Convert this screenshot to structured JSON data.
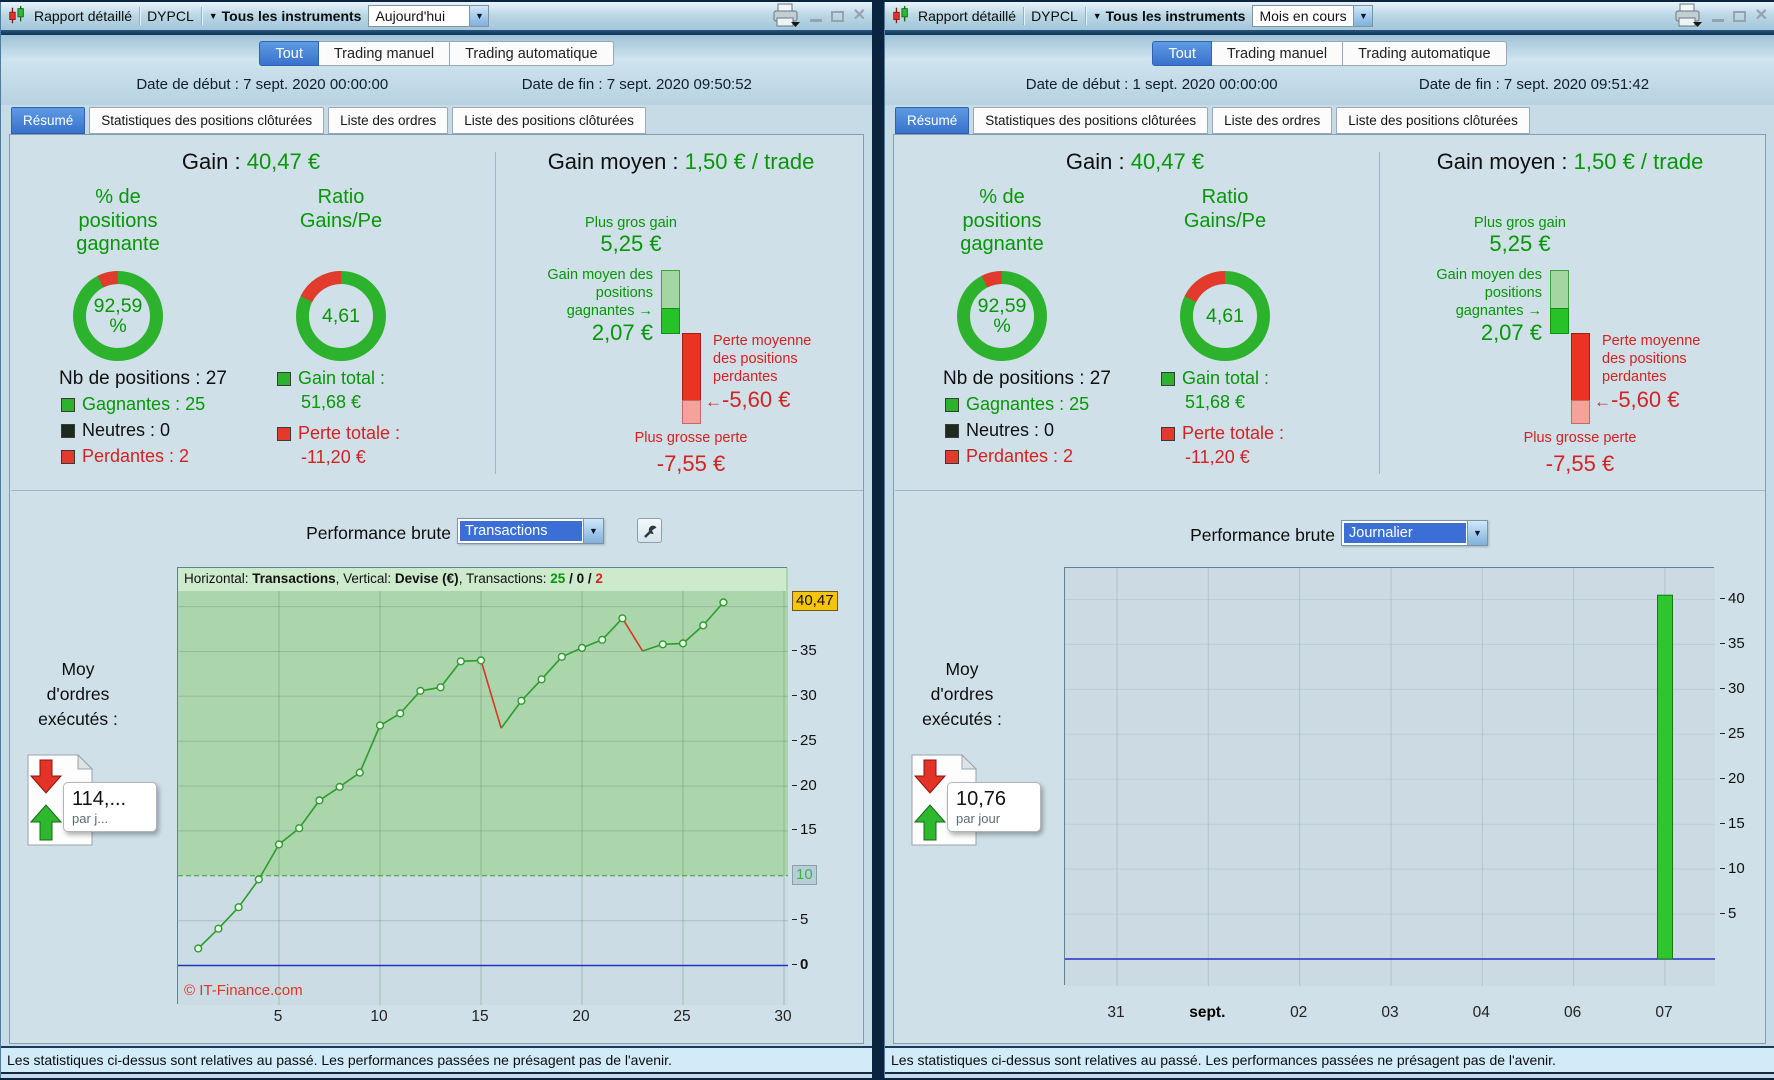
{
  "colors": {
    "gain_green": "#079607",
    "loss_red": "#d42222",
    "accent_blue": "#3d7ed8",
    "badge_yellow": "#f6c50b"
  },
  "windows": [
    {
      "titlebar": {
        "title": "Rapport détaillé",
        "instrument": "DYPCL",
        "scope_arrow": "▼",
        "scope": "Tous les instruments",
        "period": "Aujourd'hui",
        "combo_arrow": "▼"
      },
      "tabs": [
        "Tout",
        "Trading manuel",
        "Trading automatique"
      ],
      "dates": {
        "start": "Date de début : 7 sept. 2020 00:00:00",
        "end": "Date de fin : 7 sept. 2020 09:50:52"
      },
      "subtabs": [
        "Résumé",
        "Statistiques des positions clôturées",
        "Liste des ordres",
        "Liste des positions clôturées"
      ],
      "summary": {
        "gain_label": "Gain :",
        "gain_value": "40,47 €",
        "pct_title": "% de positions gagnante",
        "pct_value_line1": "92,59",
        "pct_value_line2": "%",
        "ratio_title": "Ratio Gains/Pe",
        "ratio_value": "4,61",
        "nb_positions": "Nb de positions : 27",
        "winners": "Gagnantes : 25",
        "neutrals": "Neutres : 0",
        "losers": "Perdantes : 2",
        "gain_total_label": "Gain total :",
        "gain_total_value": "51,68 €",
        "loss_total_label": "Perte totale :",
        "loss_total_value": "-11,20 €"
      },
      "avg": {
        "title_label": "Gain moyen :",
        "title_value": "1,50 € / trade",
        "max_gain_label": "Plus gros gain",
        "max_gain_value": "5,25 €",
        "avg_gain_label": "Gain moyen des positions gagnantes",
        "gain_pointer": "→",
        "avg_gain_value": "2,07 €",
        "avg_loss_label": "Perte moyenne des positions perdantes",
        "loss_pointer": "←",
        "avg_loss_value": "-5,60 €",
        "max_loss_label": "Plus grosse perte",
        "max_loss_value": "-7,55 €"
      },
      "moy": {
        "label": "Moy d'ordres exécutés :",
        "value": "114,...",
        "unit": "par j..."
      },
      "perf": {
        "title": "Performance brute",
        "mode": "Transactions"
      },
      "status": "Les statistiques ci-dessus sont relatives au passé. Les performances passées ne présagent pas de l'avenir."
    },
    {
      "titlebar": {
        "title": "Rapport détaillé",
        "instrument": "DYPCL",
        "scope_arrow": "▼",
        "scope": "Tous les instruments",
        "period": "Mois en cours",
        "combo_arrow": "▼"
      },
      "tabs": [
        "Tout",
        "Trading manuel",
        "Trading automatique"
      ],
      "dates": {
        "start": "Date de début : 1 sept. 2020 00:00:00",
        "end": "Date de fin : 7 sept. 2020 09:51:42"
      },
      "subtabs": [
        "Résumé",
        "Statistiques des positions clôturées",
        "Liste des ordres",
        "Liste des positions clôturées"
      ],
      "summary": {
        "gain_label": "Gain :",
        "gain_value": "40,47 €",
        "pct_title": "% de positions gagnante",
        "pct_value_line1": "92,59",
        "pct_value_line2": "%",
        "ratio_title": "Ratio Gains/Pe",
        "ratio_value": "4,61",
        "nb_positions": "Nb de positions : 27",
        "winners": "Gagnantes : 25",
        "neutrals": "Neutres : 0",
        "losers": "Perdantes : 2",
        "gain_total_label": "Gain total :",
        "gain_total_value": "51,68 €",
        "loss_total_label": "Perte totale :",
        "loss_total_value": "-11,20 €"
      },
      "avg": {
        "title_label": "Gain moyen :",
        "title_value": "1,50 € / trade",
        "max_gain_label": "Plus gros gain",
        "max_gain_value": "5,25 €",
        "avg_gain_label": "Gain moyen des positions gagnantes",
        "gain_pointer": "→",
        "avg_gain_value": "2,07 €",
        "avg_loss_label": "Perte moyenne des positions perdantes",
        "loss_pointer": "←",
        "avg_loss_value": "-5,60 €",
        "max_loss_label": "Plus grosse perte",
        "max_loss_value": "-7,55 €"
      },
      "moy": {
        "label": "Moy d'ordres exécutés :",
        "value": "10,76",
        "unit": "par jour"
      },
      "perf": {
        "title": "Performance brute",
        "mode": "Journalier"
      },
      "status": "Les statistiques ci-dessus sont relatives au passé. Les performances passées ne présagent pas de l'avenir."
    }
  ],
  "chart_data": [
    {
      "type": "line",
      "title": "Performance brute",
      "mode": "Transactions",
      "xlabel": "Transactions",
      "ylabel": "Devise (€)",
      "header": {
        "h_label": "Horizontal:",
        "h_value": "Transactions",
        "sep": ", ",
        "v_label": "Vertical:",
        "v_value": "Devise (€)",
        "t_label": "Transactions:",
        "wins": "25",
        "slash": "/",
        "neutrals": "0",
        "losses": "2"
      },
      "watermark": "© IT-Finance.com",
      "x": [
        1,
        2,
        3,
        4,
        5,
        6,
        7,
        8,
        9,
        10,
        11,
        12,
        13,
        14,
        15,
        16,
        17,
        18,
        19,
        20,
        21,
        22,
        23,
        24,
        25,
        26,
        27
      ],
      "y": [
        1.9,
        4.1,
        6.5,
        9.6,
        13.5,
        15.3,
        18.4,
        19.9,
        21.5,
        26.75,
        28.1,
        30.6,
        31.0,
        33.9,
        34.0,
        26.45,
        29.5,
        31.9,
        34.4,
        35.4,
        36.3,
        38.7,
        35.05,
        35.8,
        35.9,
        37.9,
        40.47
      ],
      "x_ticks": [
        5,
        10,
        15,
        20,
        25,
        30
      ],
      "y_ticks": [
        5,
        15,
        20,
        25,
        30,
        35
      ],
      "y_badge_top": "40,47",
      "y_badge_mid": "10",
      "y_zero_label": "0",
      "threshold": 10,
      "final_value": 40.47,
      "xlim": [
        0,
        30.2
      ],
      "ylim": [
        -4.4,
        44.3
      ],
      "grid": true,
      "legend_position": "none"
    },
    {
      "type": "bar",
      "title": "Performance brute",
      "mode": "Journalier",
      "ylabel": "Devise (€)",
      "categories": [
        "31",
        "sept.",
        "02",
        "03",
        "04",
        "06",
        "07"
      ],
      "values": [
        0,
        0,
        0,
        0,
        0,
        0,
        40.47
      ],
      "bold_category": "sept.",
      "y_ticks": [
        5,
        10,
        15,
        20,
        25,
        30,
        35,
        40
      ],
      "ylim": [
        -3,
        43.5
      ],
      "grid": true,
      "legend_position": "none"
    }
  ]
}
